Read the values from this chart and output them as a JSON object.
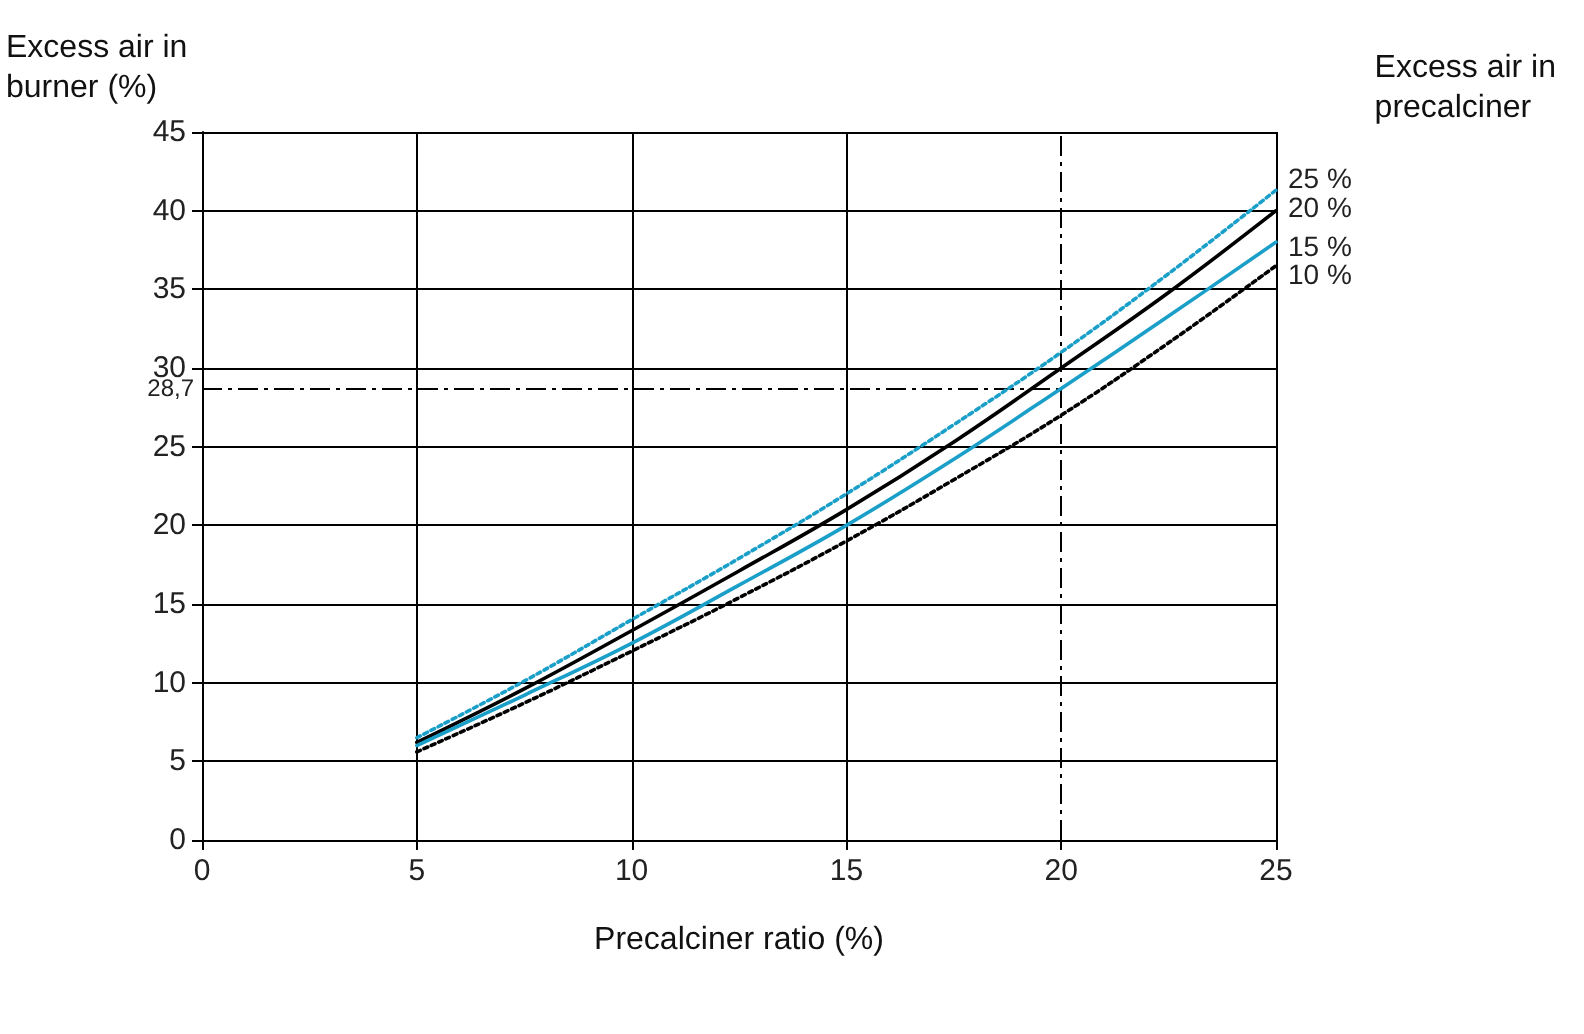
{
  "chart_data": {
    "type": "line",
    "xlabel": "Precalciner ratio (%)",
    "ylabel": "Excess air in\nburner (%)",
    "legend_title": "Excess air in\nprecalciner",
    "x": [
      5,
      7.5,
      10,
      12.5,
      15,
      17.5,
      20,
      22.5,
      25
    ],
    "series": [
      {
        "name": "25 %",
        "color": "#1a9fc9",
        "line_style": "dotted",
        "values": [
          6.5,
          10.1,
          14,
          17.9,
          22,
          26.4,
          31,
          36,
          41.3
        ]
      },
      {
        "name": "20 %",
        "color": "#000000",
        "line_style": "solid",
        "values": [
          6.2,
          9.6,
          13.3,
          17.1,
          21,
          25.3,
          30,
          34.8,
          40
        ]
      },
      {
        "name": "15 %",
        "color": "#1a9fc9",
        "line_style": "solid",
        "values": [
          6.0,
          9.2,
          12.5,
          16.2,
          20,
          24.2,
          28.7,
          33.3,
          38
        ]
      },
      {
        "name": "10 %",
        "color": "#000000",
        "line_style": "dotted",
        "values": [
          5.6,
          8.7,
          12,
          15.4,
          19,
          22.9,
          27,
          31.6,
          36.5
        ]
      }
    ],
    "xlim": [
      0,
      25
    ],
    "xticks": [
      0,
      5,
      10,
      15,
      20,
      25
    ],
    "ylim": [
      0,
      45
    ],
    "yticks": [
      0,
      5,
      10,
      15,
      20,
      25,
      30,
      35,
      40,
      45
    ],
    "ref_lines": [
      {
        "axis": "y",
        "value": 28.7,
        "label": "28,7"
      },
      {
        "axis": "x",
        "value": 20,
        "label": null
      }
    ],
    "grid": true,
    "marker": "none",
    "legend": false
  }
}
